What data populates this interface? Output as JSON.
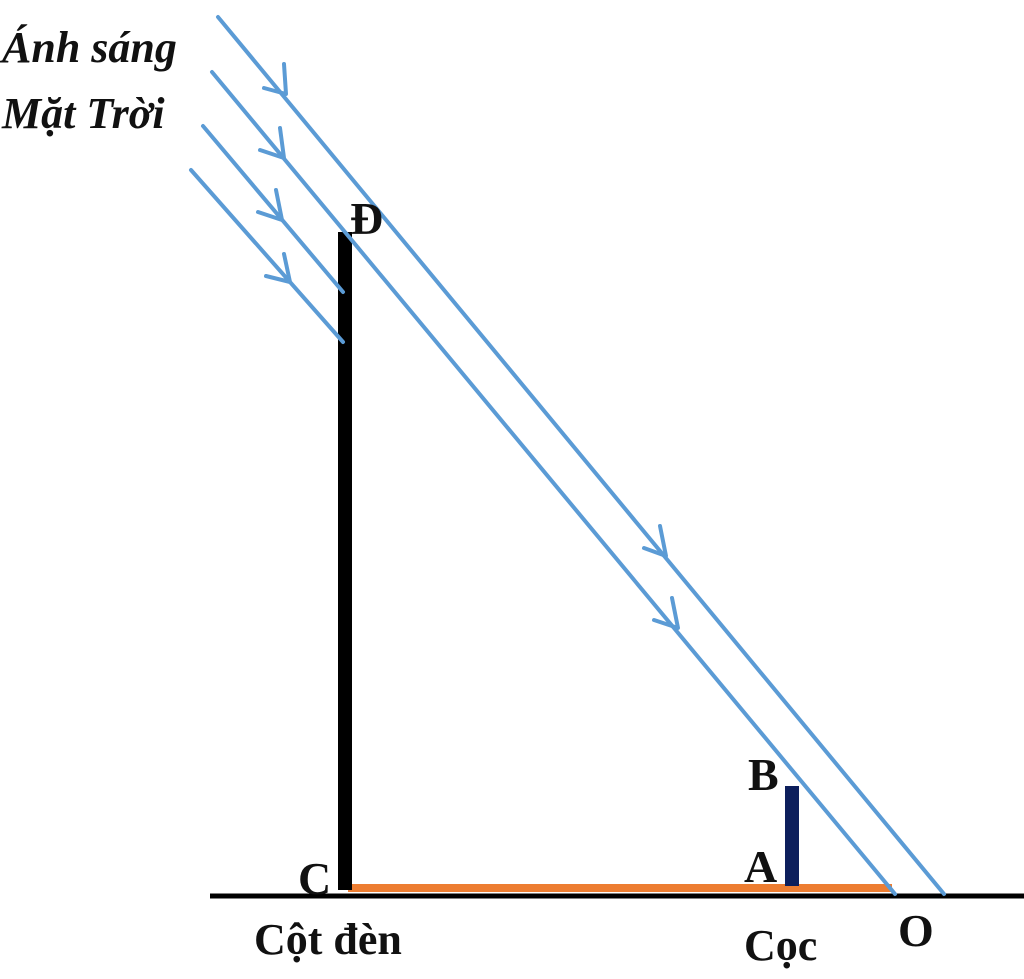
{
  "caption": {
    "sunlight_line1": "Ánh sáng",
    "sunlight_line2": "Mặt Trời"
  },
  "points": {
    "D": "Đ",
    "C": "C",
    "B": "B",
    "A": "A",
    "O": "O"
  },
  "objects": {
    "lamp_post": "Cột đèn",
    "stake": "Cọc"
  },
  "colors": {
    "ray": "#5b9bd5",
    "lamp_post": "#000000",
    "stake": "#0d1f5c",
    "shadow": "#ed7d31",
    "ground": "#000000"
  }
}
